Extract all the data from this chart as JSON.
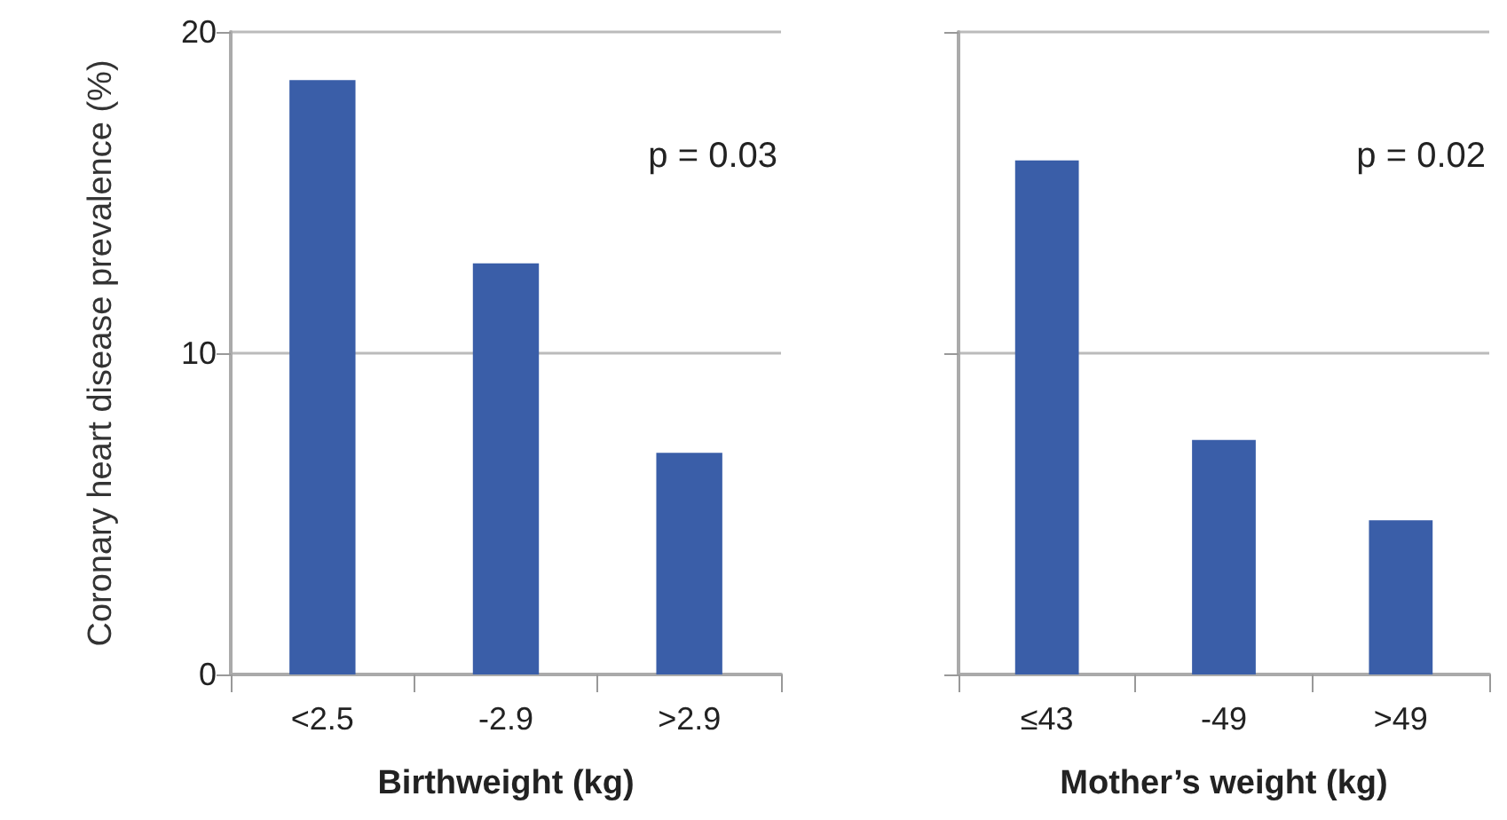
{
  "chart_data": [
    {
      "type": "bar",
      "xlabel": "Birthweight (kg)",
      "ylabel": "Coronary heart disease prevalence (%)",
      "categories": [
        "<2.5",
        "-2.9",
        ">2.9"
      ],
      "values": [
        18.5,
        12.8,
        6.9
      ],
      "color": "#3a5ea8",
      "ylim": [
        0,
        20
      ],
      "yticks": [
        0,
        10,
        20
      ],
      "grid": "y",
      "annotations": [
        "p = 0.03"
      ]
    },
    {
      "type": "bar",
      "xlabel": "Mother’s weight (kg)",
      "categories": [
        "≤43",
        "-49",
        ">49"
      ],
      "values": [
        16.0,
        7.3,
        4.8
      ],
      "color": "#3a5ea8",
      "ylim": [
        0,
        20
      ],
      "yticks": [
        0,
        10,
        20
      ],
      "grid": "y",
      "tick_labels": "x",
      "annotations": [
        "p = 0.02"
      ]
    }
  ]
}
